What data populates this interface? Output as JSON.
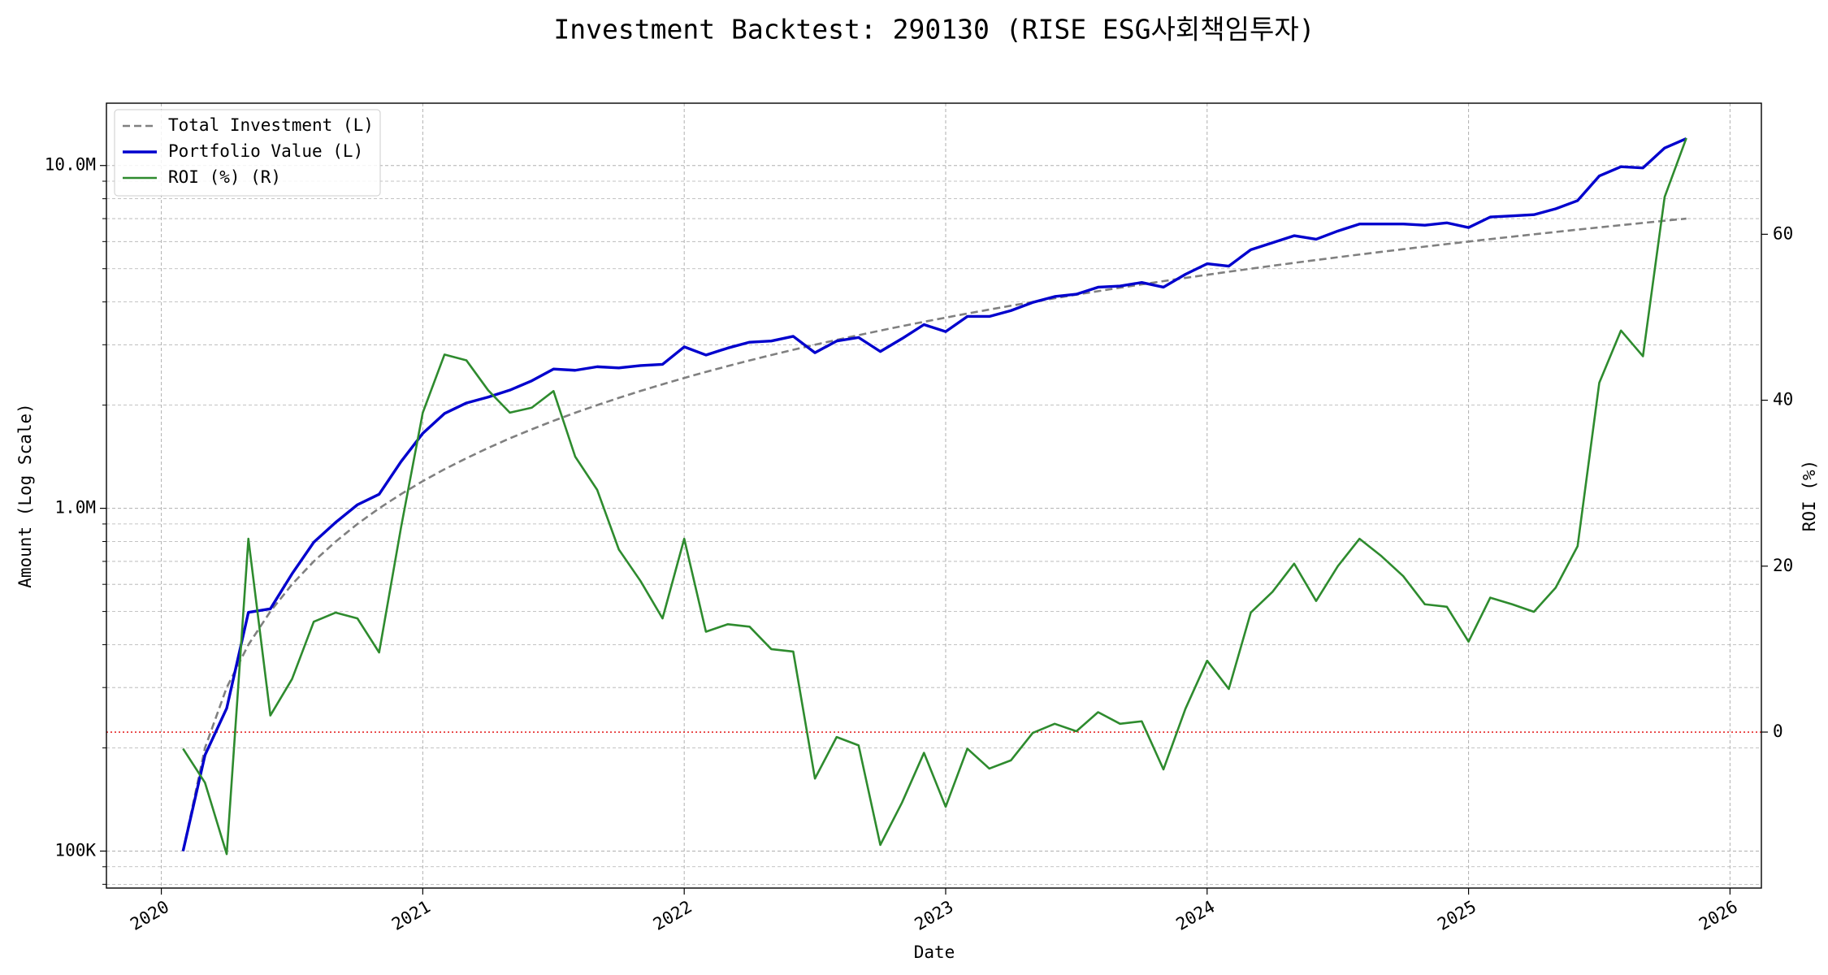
{
  "chart_data": {
    "type": "line",
    "title": "Investment Backtest: 290130 (RISE ESG사회책임투자)",
    "xlabel": "Date",
    "ylabel": "Amount (Log Scale)",
    "y2label": "ROI (%)",
    "yscale": "log",
    "grid": true,
    "legend": "upper left",
    "ycolor": "#0000cd",
    "y2color": "#228b22",
    "xlim": [
      2019.79,
      2026.12
    ],
    "xticks": [
      2020,
      2021,
      2022,
      2023,
      2024,
      2025,
      2026
    ],
    "ylim": [
      78000,
      15200000
    ],
    "yticks": [
      {
        "value": 100000,
        "label": "100K"
      },
      {
        "value": 1000000,
        "label": "1.0M"
      },
      {
        "value": 10000000,
        "label": "10.0M"
      }
    ],
    "yminorticks": [
      80000,
      90000,
      200000,
      300000,
      400000,
      500000,
      600000,
      700000,
      800000,
      900000,
      2000000,
      3000000,
      4000000,
      5000000,
      6000000,
      7000000,
      8000000,
      9000000
    ],
    "y2lim": [
      -18.8,
      75.8
    ],
    "y2ticks": [
      0,
      20,
      40,
      60
    ],
    "reference_line": {
      "value": 0,
      "axis": "y2",
      "color": "#e00000"
    },
    "x": [
      2020.083,
      2020.167,
      2020.25,
      2020.333,
      2020.417,
      2020.5,
      2020.583,
      2020.667,
      2020.75,
      2020.833,
      2020.917,
      2021.0,
      2021.083,
      2021.167,
      2021.25,
      2021.333,
      2021.417,
      2021.5,
      2021.583,
      2021.667,
      2021.75,
      2021.833,
      2021.917,
      2022.0,
      2022.083,
      2022.167,
      2022.25,
      2022.333,
      2022.417,
      2022.5,
      2022.583,
      2022.667,
      2022.75,
      2022.833,
      2022.917,
      2023.0,
      2023.083,
      2023.167,
      2023.25,
      2023.333,
      2023.417,
      2023.5,
      2023.583,
      2023.667,
      2023.75,
      2023.833,
      2023.917,
      2024.0,
      2024.083,
      2024.167,
      2024.25,
      2024.333,
      2024.417,
      2024.5,
      2024.583,
      2024.667,
      2024.75,
      2024.833,
      2024.917,
      2025.0,
      2025.083,
      2025.167,
      2025.25,
      2025.333,
      2025.417,
      2025.5,
      2025.583,
      2025.667,
      2025.75,
      2025.833
    ],
    "series": [
      {
        "name": "Total Investment (L)",
        "color": "#808080",
        "dashed": true,
        "axis": "y",
        "values": [
          100000,
          200000,
          300000,
          400000,
          500000,
          600000,
          700000,
          800000,
          900000,
          1000000,
          1100000,
          1200000,
          1300000,
          1400000,
          1500000,
          1600000,
          1700000,
          1800000,
          1900000,
          2000000,
          2100000,
          2200000,
          2300000,
          2400000,
          2500000,
          2600000,
          2700000,
          2800000,
          2900000,
          3000000,
          3100000,
          3200000,
          3300000,
          3400000,
          3500000,
          3600000,
          3700000,
          3800000,
          3900000,
          4000000,
          4100000,
          4200000,
          4300000,
          4400000,
          4500000,
          4600000,
          4700000,
          4800000,
          4900000,
          5000000,
          5100000,
          5200000,
          5300000,
          5400000,
          5500000,
          5600000,
          5700000,
          5800000,
          5900000,
          6000000,
          6100000,
          6200000,
          6300000,
          6400000,
          6500000,
          6600000,
          6700000,
          6800000,
          6900000,
          7000000
        ]
      },
      {
        "name": "Portfolio Value (L)",
        "color": "#0000cd",
        "dashed": false,
        "axis": "y",
        "values": [
          100000,
          190500,
          261000,
          497000,
          509000,
          644000,
          796000,
          910000,
          1024000,
          1099000,
          1369000,
          1654000,
          1890000,
          2029000,
          2110000,
          2212000,
          2355000,
          2548000,
          2527000,
          2588000,
          2568000,
          2609000,
          2630000,
          2958000,
          2800000,
          2935000,
          3052000,
          3076000,
          3175000,
          2844000,
          3076000,
          3150000,
          2867000,
          3126000,
          3435000,
          3277000,
          3628000,
          3628000,
          3774000,
          3987000,
          4147000,
          4213000,
          4416000,
          4451000,
          4557000,
          4416000,
          4815000,
          5169000,
          5088000,
          5680000,
          5953000,
          6241000,
          6095000,
          6440000,
          6751000,
          6751000,
          6751000,
          6697000,
          6804000,
          6593000,
          7075000,
          7131000,
          7188000,
          7476000,
          7900000,
          9320000,
          9920000,
          9840000,
          11250000,
          11980000
        ]
      },
      {
        "name": "ROI (%) (R)",
        "color": "#2e8b2e",
        "dashed": false,
        "axis": "y2",
        "values": [
          -2.0,
          -6.1,
          -14.7,
          23.3,
          2.0,
          6.4,
          13.3,
          14.4,
          13.7,
          9.6,
          24.7,
          38.5,
          45.5,
          44.8,
          41.2,
          38.5,
          39.1,
          41.1,
          33.2,
          29.2,
          22.0,
          18.2,
          13.7,
          23.3,
          12.1,
          13.0,
          12.7,
          10.0,
          9.7,
          -5.6,
          -0.6,
          -1.6,
          -13.6,
          -8.5,
          -2.5,
          -9.0,
          -2.0,
          -4.4,
          -3.4,
          -0.1,
          1.0,
          0.1,
          2.4,
          1.0,
          1.3,
          -4.5,
          2.8,
          8.6,
          5.2,
          14.4,
          16.9,
          20.3,
          15.8,
          20.0,
          23.3,
          21.2,
          18.8,
          15.4,
          15.1,
          10.9,
          16.2,
          15.4,
          14.5,
          17.4,
          22.4,
          42.1,
          48.4,
          45.3,
          64.5,
          71.6
        ]
      }
    ]
  }
}
